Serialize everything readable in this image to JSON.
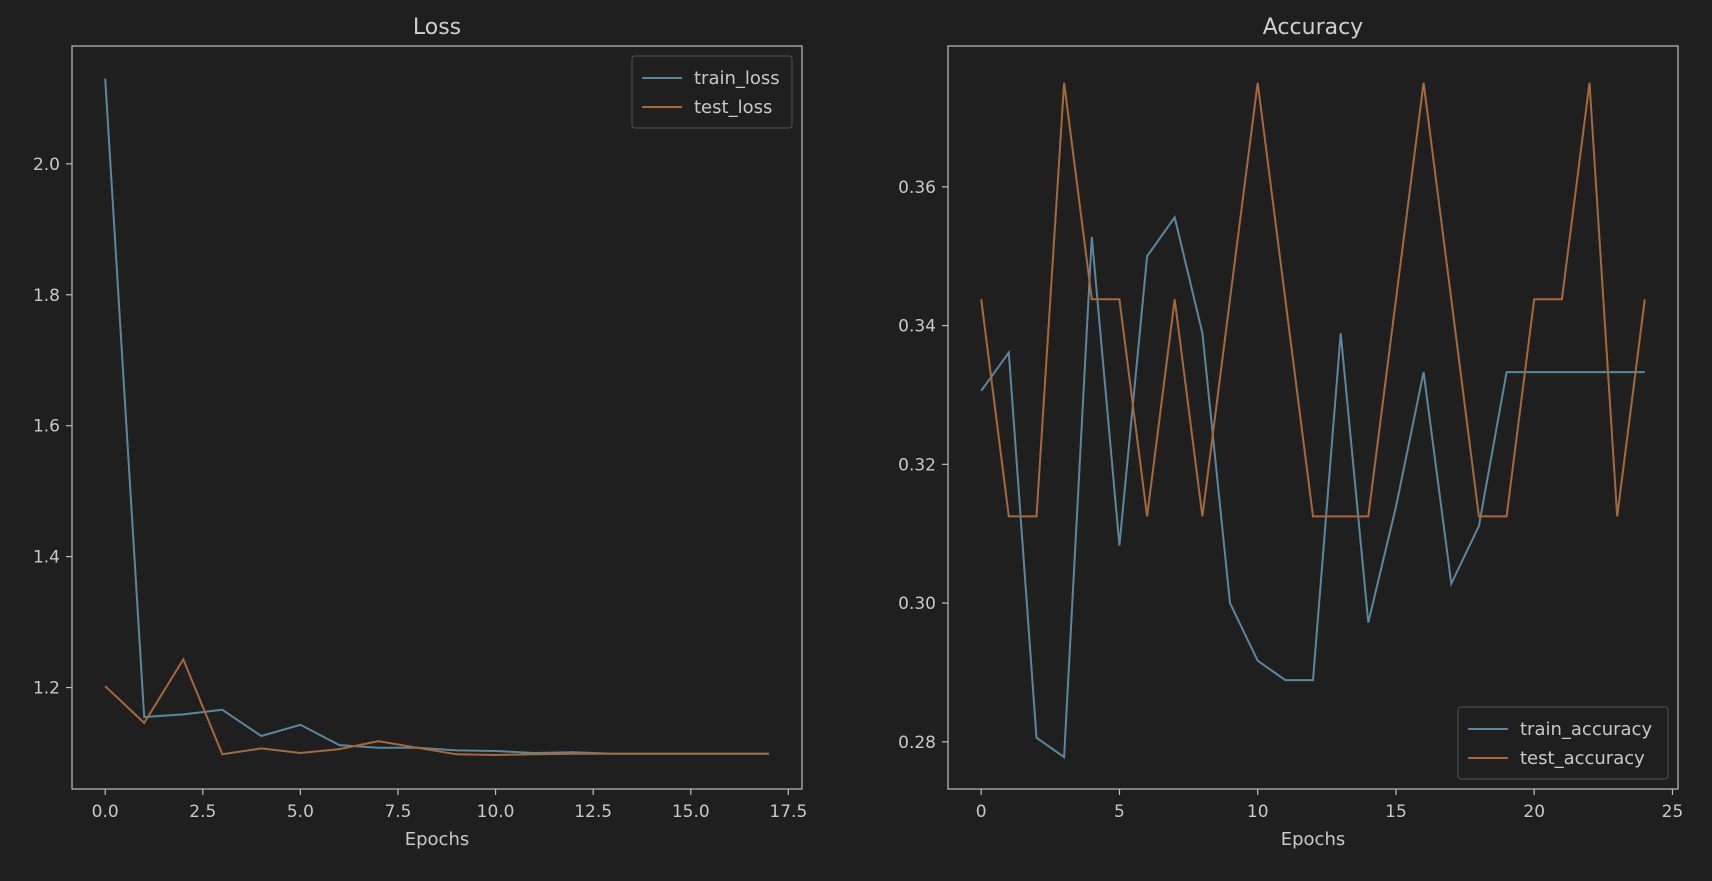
{
  "theme": {
    "background": "#1f1f1f",
    "axes_face": "#1f1f1f",
    "frame": "#bdbdbd",
    "text": "#c8c8c8",
    "title_text": "#cfcfcf",
    "train_color": "#5b86a0",
    "test_color": "#a7683a",
    "legend_face": "#1f1f1f",
    "legend_edge": "#4a4a4a"
  },
  "chart_data": [
    {
      "type": "line",
      "title": "Loss",
      "xlabel": "Epochs",
      "ylabel": "",
      "xlim": [
        -0.85,
        17.85
      ],
      "ylim": [
        1.045,
        2.18
      ],
      "xticks": [
        0,
        2.5,
        5,
        7.5,
        10,
        12.5,
        15,
        17.5
      ],
      "xtick_labels": [
        "0.0",
        "2.5",
        "5.0",
        "7.5",
        "10.0",
        "12.5",
        "15.0",
        "17.5"
      ],
      "yticks": [
        1.2,
        1.4,
        1.6,
        1.8,
        2.0
      ],
      "ytick_labels": [
        "1.2",
        "1.4",
        "1.6",
        "1.8",
        "2.0"
      ],
      "grid": false,
      "legend_position": "top-right",
      "x": [
        0,
        1,
        2,
        3,
        4,
        5,
        6,
        7,
        8,
        9,
        10,
        11,
        12,
        13,
        14,
        15,
        16,
        17
      ],
      "series": [
        {
          "name": "train_loss",
          "color_key": "train_color",
          "values": [
            2.13,
            1.155,
            1.159,
            1.166,
            1.126,
            1.143,
            1.112,
            1.108,
            1.108,
            1.104,
            1.103,
            1.1,
            1.101,
            1.099,
            1.099,
            1.099,
            1.099,
            1.099
          ]
        },
        {
          "name": "test_loss",
          "color_key": "test_color",
          "values": [
            1.202,
            1.146,
            1.243,
            1.098,
            1.107,
            1.1,
            1.106,
            1.118,
            1.108,
            1.098,
            1.097,
            1.098,
            1.099,
            1.099,
            1.099,
            1.099,
            1.099,
            1.099
          ]
        }
      ]
    },
    {
      "type": "line",
      "title": "Accuracy",
      "xlabel": "Epochs",
      "ylabel": "",
      "xlim": [
        -1.2,
        25.2
      ],
      "ylim": [
        0.2732,
        0.3803
      ],
      "xticks": [
        0,
        5,
        10,
        15,
        20,
        25
      ],
      "xtick_labels": [
        "0",
        "5",
        "10",
        "15",
        "20",
        "25"
      ],
      "yticks": [
        0.28,
        0.3,
        0.32,
        0.34,
        0.36
      ],
      "ytick_labels": [
        "0.28",
        "0.30",
        "0.32",
        "0.34",
        "0.36"
      ],
      "grid": false,
      "legend_position": "bottom-right",
      "x": [
        0,
        1,
        2,
        3,
        4,
        5,
        6,
        7,
        8,
        9,
        10,
        11,
        12,
        13,
        14,
        15,
        16,
        17,
        18,
        19,
        20,
        21,
        22,
        23,
        24
      ],
      "series": [
        {
          "name": "train_accuracy",
          "color_key": "train_color",
          "values": [
            0.3306,
            0.3361,
            0.2806,
            0.2778,
            0.3528,
            0.3083,
            0.35,
            0.3556,
            0.3389,
            0.3,
            0.2917,
            0.2889,
            0.2889,
            0.3389,
            0.2972,
            0.3139,
            0.3333,
            0.3028,
            0.3111,
            0.3333,
            0.3333,
            0.3333,
            0.3333,
            0.3333,
            0.3333
          ]
        },
        {
          "name": "test_accuracy",
          "color_key": "test_color",
          "values": [
            0.3438,
            0.3125,
            0.3125,
            0.375,
            0.3438,
            0.3438,
            0.3125,
            0.3438,
            0.3125,
            0.3438,
            0.375,
            0.3438,
            0.3125,
            0.3125,
            0.3125,
            0.3438,
            0.375,
            0.3438,
            0.3125,
            0.3125,
            0.3438,
            0.3438,
            0.375,
            0.3125,
            0.3438
          ]
        }
      ]
    }
  ]
}
